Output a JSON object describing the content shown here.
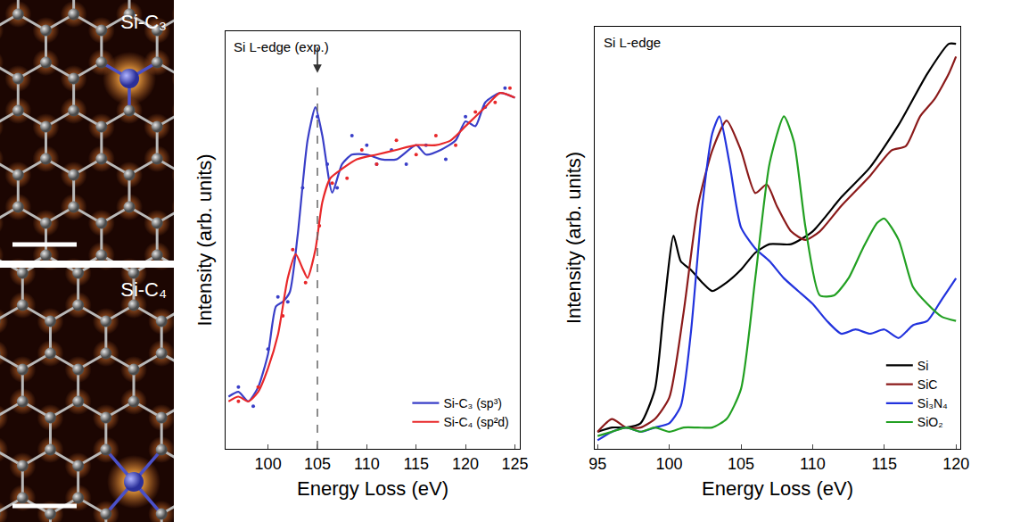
{
  "images": [
    {
      "label": "Si-C₃"
    },
    {
      "label": "Si-C₄"
    }
  ],
  "chart_data": [
    {
      "type": "line",
      "title": "Si L-edge (exp.)",
      "x_label": "Energy Loss (eV)",
      "y_label": "Intensity (arb. units)",
      "xlim": [
        95.7,
        125.5
      ],
      "xticks": [
        100,
        105,
        110,
        115,
        120,
        125
      ],
      "ylim": [
        0,
        0.88
      ],
      "tick_labels": "x",
      "grid": false,
      "legend": "lower right",
      "reference_line": {
        "x": 105,
        "line_style": "dashed"
      },
      "series": [
        {
          "name": "Si-C₃ (sp³)",
          "color": "#3a3fc8",
          "line_style": "solid",
          "marker": "circle",
          "x": [
            96,
            97,
            98,
            99,
            100,
            100.8,
            101.5,
            102.2,
            103,
            104,
            104.8,
            105.5,
            106.5,
            107.5,
            108.5,
            110,
            111.5,
            113,
            115,
            116,
            117.5,
            119,
            120,
            121,
            122,
            123.5,
            125
          ],
          "values": [
            0.11,
            0.12,
            0.1,
            0.13,
            0.2,
            0.3,
            0.31,
            0.33,
            0.45,
            0.65,
            0.72,
            0.66,
            0.54,
            0.6,
            0.62,
            0.62,
            0.61,
            0.61,
            0.64,
            0.62,
            0.63,
            0.65,
            0.69,
            0.68,
            0.73,
            0.75,
            0.74
          ],
          "points": {
            "x": [
              97,
              98.5,
              100,
              101,
              102,
              103.5,
              105,
              106,
              107,
              108.5,
              110,
              111,
              112.5,
              114,
              116,
              118,
              120,
              122,
              124
            ],
            "y": [
              0.13,
              0.09,
              0.21,
              0.32,
              0.31,
              0.55,
              0.7,
              0.6,
              0.55,
              0.66,
              0.64,
              0.6,
              0.63,
              0.6,
              0.64,
              0.61,
              0.7,
              0.72,
              0.76
            ]
          }
        },
        {
          "name": "Si-C₄ (sp²d)",
          "color": "#e8282a",
          "line_style": "solid",
          "marker": "circle",
          "x": [
            96,
            97,
            98,
            99,
            100,
            101,
            102,
            102.8,
            103.5,
            104,
            104.8,
            105.5,
            106.3,
            107.5,
            109,
            111,
            113,
            115,
            117,
            118.5,
            120,
            121,
            122,
            123.5,
            125
          ],
          "values": [
            0.1,
            0.11,
            0.1,
            0.12,
            0.17,
            0.24,
            0.36,
            0.41,
            0.38,
            0.36,
            0.42,
            0.52,
            0.57,
            0.59,
            0.61,
            0.62,
            0.63,
            0.64,
            0.64,
            0.65,
            0.68,
            0.7,
            0.72,
            0.75,
            0.74
          ],
          "points": {
            "x": [
              97,
              99,
              101.5,
              102.5,
              103.8,
              105.2,
              106.5,
              108,
              109.5,
              111,
              113,
              115,
              117,
              119,
              121,
              123,
              124.5
            ],
            "y": [
              0.1,
              0.13,
              0.28,
              0.42,
              0.35,
              0.47,
              0.56,
              0.57,
              0.63,
              0.6,
              0.65,
              0.62,
              0.66,
              0.64,
              0.71,
              0.73,
              0.76
            ]
          }
        }
      ]
    },
    {
      "type": "line",
      "title": "Si L-edge",
      "x_label": "Energy Loss (eV)",
      "y_label": "Intensity (arb. units)",
      "xlim": [
        94.8,
        120.3
      ],
      "xticks": [
        95,
        100,
        105,
        110,
        115,
        120
      ],
      "ylim": [
        -0.02,
        0.97
      ],
      "tick_labels": "x",
      "grid": false,
      "legend": "lower right",
      "series": [
        {
          "name": "Si",
          "color": "#000000",
          "line_style": "solid",
          "x": [
            95,
            96,
            97,
            98,
            99,
            99.6,
            100.3,
            100.8,
            101.5,
            102.3,
            103,
            104,
            105,
            106,
            107,
            108.5,
            110,
            112,
            114,
            116,
            118,
            119.5,
            120
          ],
          "values": [
            0.02,
            0.03,
            0.03,
            0.04,
            0.12,
            0.3,
            0.48,
            0.42,
            0.4,
            0.37,
            0.35,
            0.37,
            0.4,
            0.44,
            0.46,
            0.46,
            0.49,
            0.57,
            0.64,
            0.74,
            0.86,
            0.93,
            0.93
          ]
        },
        {
          "name": "SiC",
          "color": "#8b1a1a",
          "line_style": "solid",
          "x": [
            95,
            96,
            97,
            98,
            99,
            100,
            101,
            102,
            103,
            104,
            105,
            106,
            106.8,
            107.5,
            108.5,
            109.5,
            110.5,
            112,
            114,
            115.5,
            116.5,
            117.5,
            118.5,
            119.5,
            120
          ],
          "values": [
            0.02,
            0.05,
            0.03,
            0.03,
            0.05,
            0.1,
            0.3,
            0.55,
            0.68,
            0.75,
            0.68,
            0.58,
            0.6,
            0.55,
            0.49,
            0.47,
            0.49,
            0.55,
            0.62,
            0.68,
            0.69,
            0.76,
            0.8,
            0.86,
            0.9
          ]
        },
        {
          "name": "Si₃N₄",
          "color": "#2233dd",
          "line_style": "solid",
          "x": [
            95,
            96,
            97,
            98,
            99,
            100,
            100.8,
            101.5,
            102.3,
            103,
            103.5,
            104.2,
            105,
            106,
            107,
            108,
            109,
            110,
            111,
            112,
            113,
            114,
            115,
            116,
            117,
            118,
            119,
            120
          ],
          "values": [
            0.0,
            0.02,
            0.03,
            0.02,
            0.03,
            0.04,
            0.08,
            0.25,
            0.55,
            0.72,
            0.76,
            0.65,
            0.5,
            0.45,
            0.42,
            0.38,
            0.35,
            0.32,
            0.28,
            0.25,
            0.26,
            0.25,
            0.26,
            0.24,
            0.27,
            0.28,
            0.33,
            0.38
          ]
        },
        {
          "name": "SiO₂",
          "color": "#22a022",
          "line_style": "solid",
          "x": [
            95,
            96,
            97,
            98,
            99,
            100,
            101,
            102,
            103,
            104,
            105,
            106,
            107,
            108,
            108.7,
            109.5,
            110.5,
            111.5,
            112.5,
            113.5,
            114.5,
            115,
            116,
            117,
            118,
            119,
            120
          ],
          "values": [
            0.01,
            0.02,
            0.03,
            0.02,
            0.03,
            0.02,
            0.03,
            0.03,
            0.03,
            0.05,
            0.12,
            0.38,
            0.65,
            0.76,
            0.7,
            0.5,
            0.34,
            0.34,
            0.38,
            0.45,
            0.51,
            0.52,
            0.47,
            0.36,
            0.32,
            0.29,
            0.28
          ]
        }
      ]
    }
  ]
}
